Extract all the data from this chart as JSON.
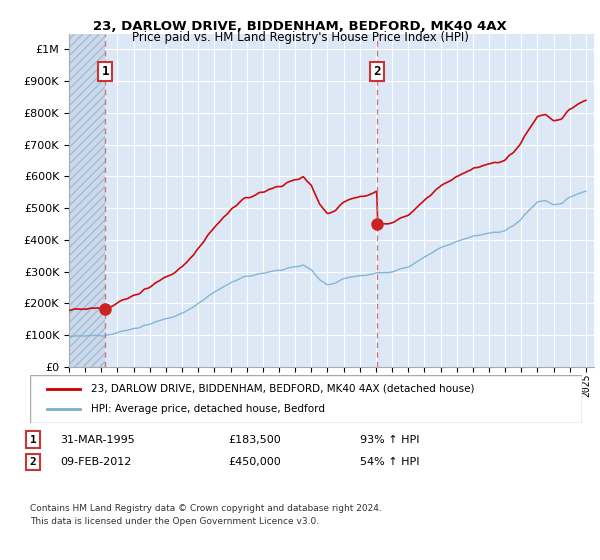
{
  "title1": "23, DARLOW DRIVE, BIDDENHAM, BEDFORD, MK40 4AX",
  "title2": "Price paid vs. HM Land Registry's House Price Index (HPI)",
  "legend_line1": "23, DARLOW DRIVE, BIDDENHAM, BEDFORD, MK40 4AX (detached house)",
  "legend_line2": "HPI: Average price, detached house, Bedford",
  "annotation1_date": "31-MAR-1995",
  "annotation1_price": "£183,500",
  "annotation1_hpi": "93% ↑ HPI",
  "annotation2_date": "09-FEB-2012",
  "annotation2_price": "£450,000",
  "annotation2_hpi": "54% ↑ HPI",
  "footnote": "Contains HM Land Registry data © Crown copyright and database right 2024.\nThis data is licensed under the Open Government Licence v3.0.",
  "red_line_color": "#cc0000",
  "blue_line_color": "#7ab0d4",
  "vline_color": "#cc6666",
  "ylim_min": 0,
  "ylim_max": 1050000,
  "sale1_year": 1995.25,
  "sale1_price": 183500,
  "sale2_year": 2012.08,
  "sale2_price": 450000,
  "xmin": 1993.0,
  "xmax": 2025.5
}
